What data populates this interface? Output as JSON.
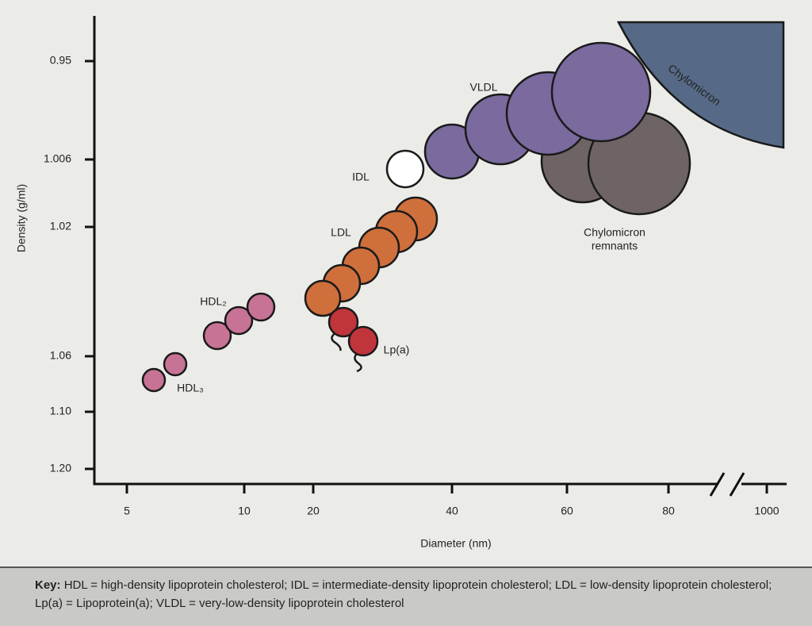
{
  "axes": {
    "y_label": "Density (g/ml)",
    "x_label": "Diameter (nm)",
    "y_ticks": [
      "0.95",
      "1.006",
      "1.02",
      "1.06",
      "1.10",
      "1.20"
    ],
    "x_ticks": [
      "5",
      "10",
      "20",
      "40",
      "60",
      "80",
      "1000"
    ]
  },
  "labels": {
    "chylomicron": "Chylomicron",
    "vldl": "VLDL",
    "idl": "IDL",
    "ldl": "LDL",
    "hdl2": "HDL₂",
    "hdl3": "HDL₃",
    "lpa": "Lp(a)",
    "remnants": [
      "Chylomicron",
      "remnants"
    ]
  },
  "key": {
    "term": "Key:",
    "text": "HDL = high-density lipoprotein cholesterol; IDL = intermediate-density lipoprotein cholesterol; LDL = low-density lipoprotein cholesterol; Lp(a) = Lipoprotein(a); VLDL = very-low-density lipoprotein cholesterol"
  }
}
